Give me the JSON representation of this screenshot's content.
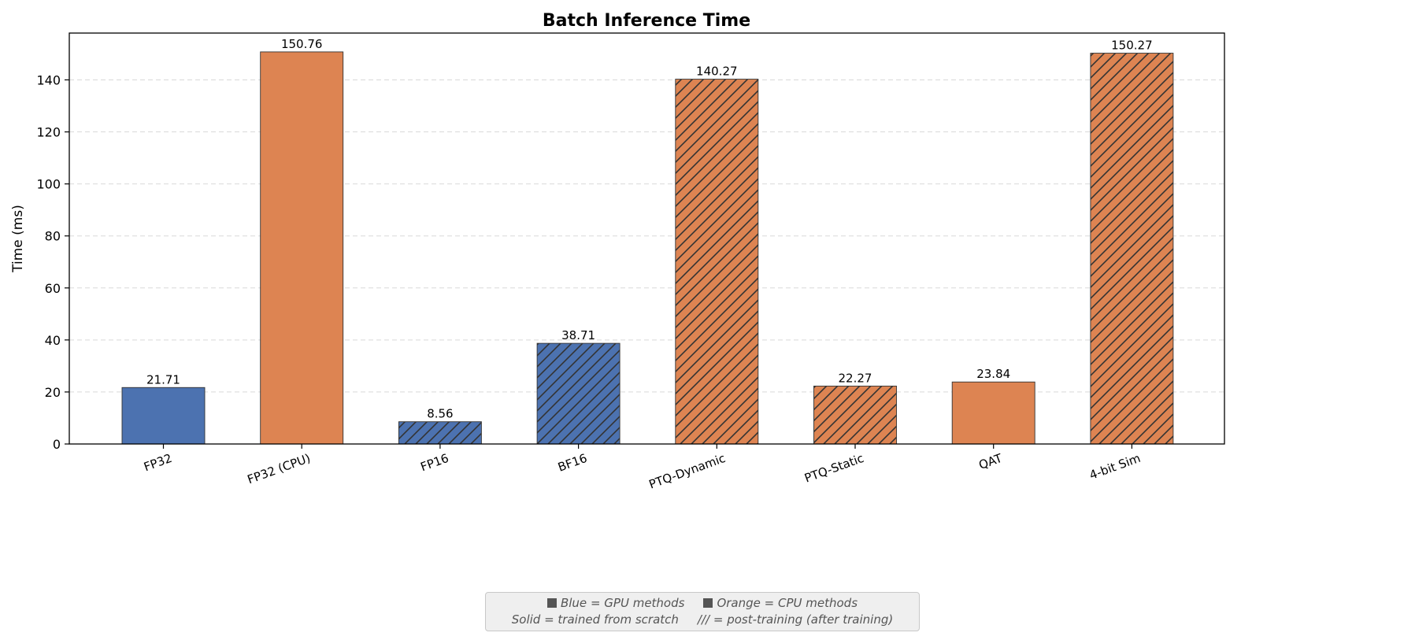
{
  "chart_data": {
    "type": "bar",
    "title": "Batch Inference Time",
    "xlabel": "",
    "ylabel": "Time (ms)",
    "ylim": [
      0,
      158
    ],
    "yticks": [
      0,
      20,
      40,
      60,
      80,
      100,
      120,
      140
    ],
    "grid": "y-dashed",
    "categories": [
      "FP32",
      "FP32 (CPU)",
      "FP16",
      "BF16",
      "PTQ-Dynamic",
      "PTQ-Static",
      "QAT",
      "4-bit Sim"
    ],
    "values": [
      21.71,
      150.76,
      8.56,
      38.71,
      140.27,
      22.27,
      23.84,
      150.27
    ],
    "value_labels": [
      "21.71",
      "150.76",
      "8.56",
      "38.71",
      "140.27",
      "22.27",
      "23.84",
      "150.27"
    ],
    "device": [
      "gpu",
      "cpu",
      "gpu",
      "gpu",
      "cpu",
      "cpu",
      "cpu",
      "cpu"
    ],
    "hatched": [
      false,
      false,
      true,
      true,
      true,
      true,
      false,
      true
    ],
    "colors": {
      "gpu": "#4c72b0",
      "cpu": "#dd8452"
    }
  },
  "note": {
    "blue_label": "Blue",
    "blue_text": "= GPU methods",
    "orange_label": "Orange",
    "orange_text": "= CPU methods",
    "solid_text": "Solid = trained from scratch",
    "hatch_text": "/// = post-training (after training)"
  }
}
